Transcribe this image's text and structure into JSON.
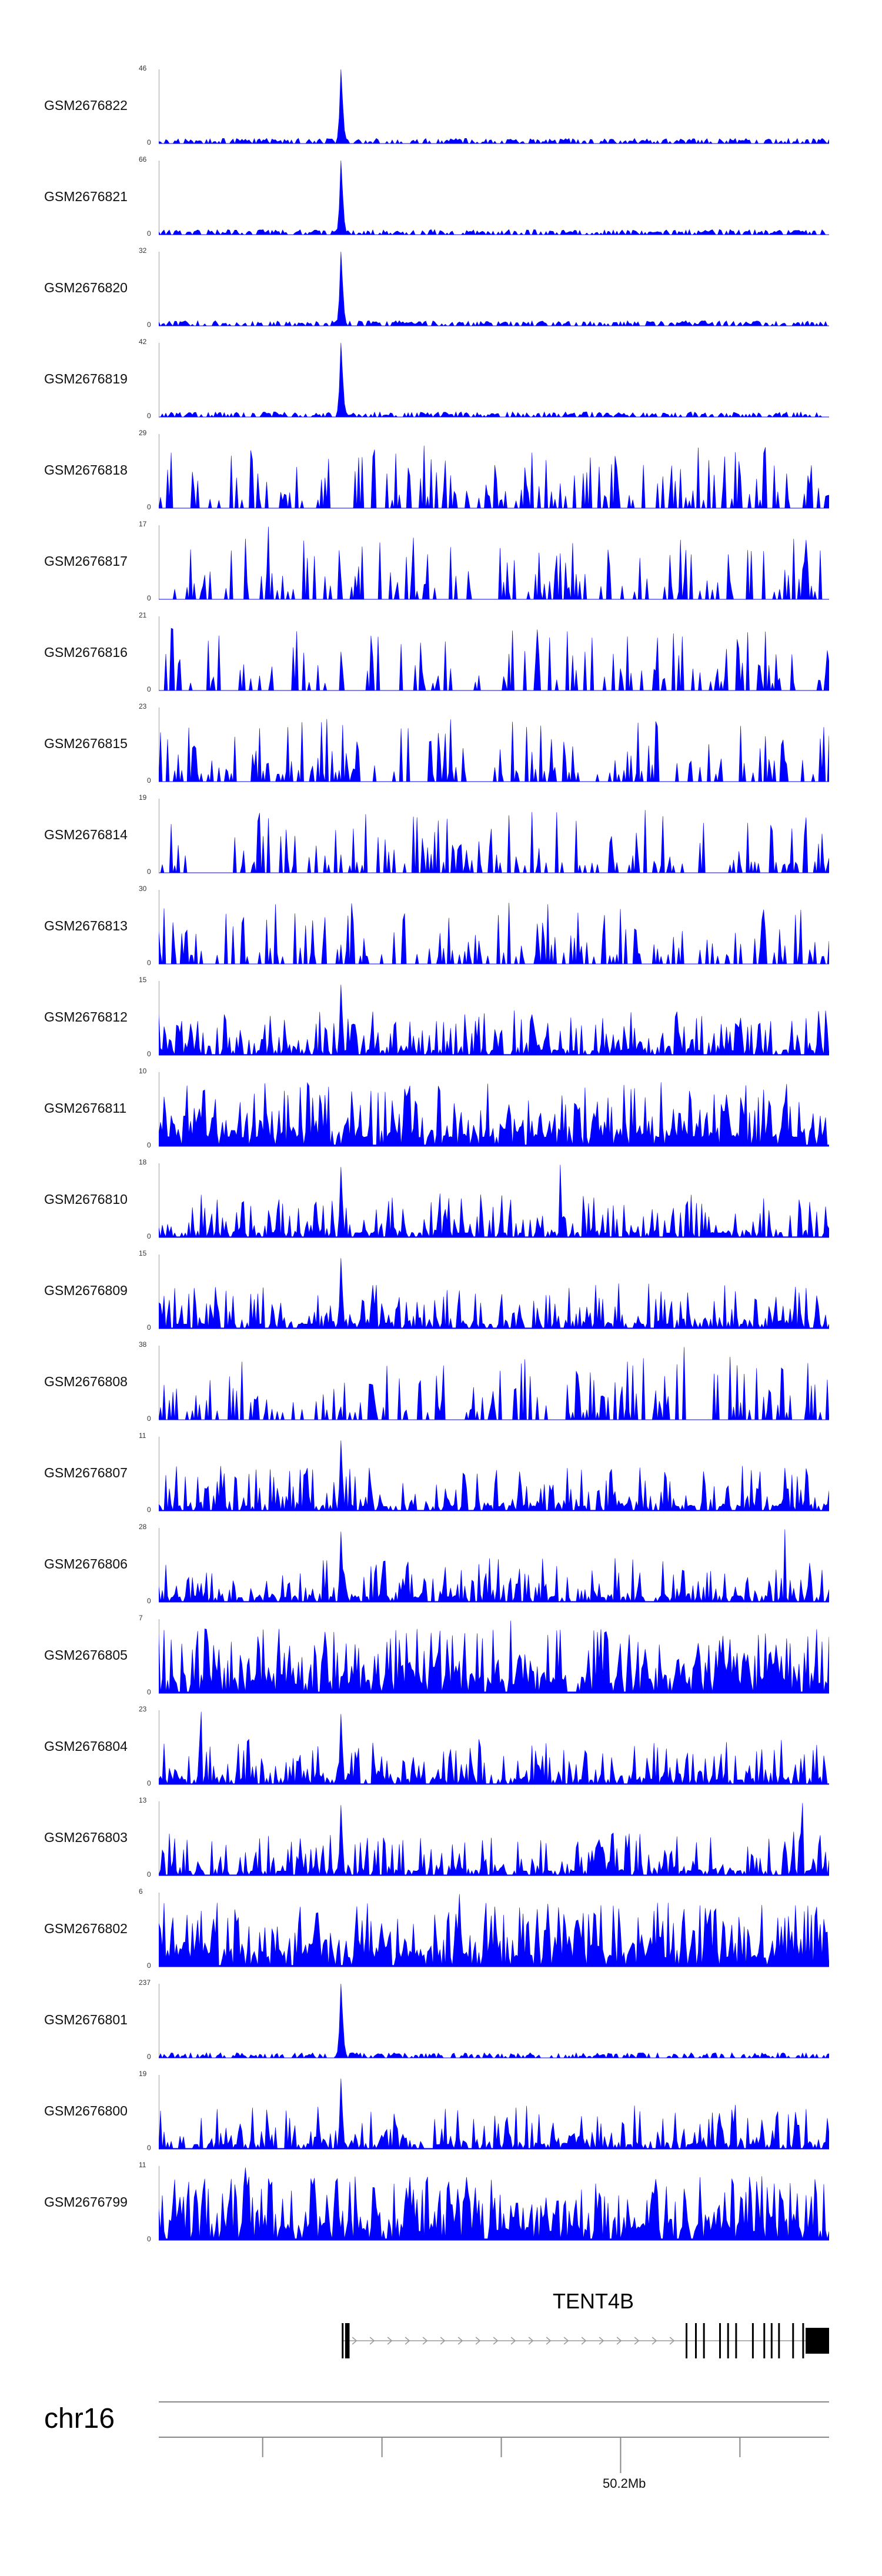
{
  "chart_data": {
    "type": "area",
    "color": "#0000ff",
    "tracks": [
      {
        "name": "GSM2676822",
        "max": "46",
        "min": "0",
        "style": "peak"
      },
      {
        "name": "GSM2676821",
        "max": "66",
        "min": "0",
        "style": "peak"
      },
      {
        "name": "GSM2676820",
        "max": "32",
        "min": "0",
        "style": "peak"
      },
      {
        "name": "GSM2676819",
        "max": "42",
        "min": "0",
        "style": "peak"
      },
      {
        "name": "GSM2676818",
        "max": "29",
        "min": "0",
        "style": "sparse"
      },
      {
        "name": "GSM2676817",
        "max": "17",
        "min": "0",
        "style": "sparse"
      },
      {
        "name": "GSM2676816",
        "max": "21",
        "min": "0",
        "style": "sparse"
      },
      {
        "name": "GSM2676815",
        "max": "23",
        "min": "0",
        "style": "sparse"
      },
      {
        "name": "GSM2676814",
        "max": "19",
        "min": "0",
        "style": "sparse"
      },
      {
        "name": "GSM2676813",
        "max": "30",
        "min": "0",
        "style": "sparse"
      },
      {
        "name": "GSM2676812",
        "max": "15",
        "min": "0",
        "style": "medium"
      },
      {
        "name": "GSM2676811",
        "max": "10",
        "min": "0",
        "style": "dense"
      },
      {
        "name": "GSM2676810",
        "max": "18",
        "min": "0",
        "style": "medium"
      },
      {
        "name": "GSM2676809",
        "max": "15",
        "min": "0",
        "style": "medium"
      },
      {
        "name": "GSM2676808",
        "max": "38",
        "min": "0",
        "style": "sparse"
      },
      {
        "name": "GSM2676807",
        "max": "11",
        "min": "0",
        "style": "medium"
      },
      {
        "name": "GSM2676806",
        "max": "28",
        "min": "0",
        "style": "medium"
      },
      {
        "name": "GSM2676805",
        "max": "7",
        "min": "0",
        "style": "dense"
      },
      {
        "name": "GSM2676804",
        "max": "23",
        "min": "0",
        "style": "medium"
      },
      {
        "name": "GSM2676803",
        "max": "13",
        "min": "0",
        "style": "medium"
      },
      {
        "name": "GSM2676802",
        "max": "6",
        "min": "0",
        "style": "dense"
      },
      {
        "name": "GSM2676801",
        "max": "237",
        "min": "0",
        "style": "peak"
      },
      {
        "name": "GSM2676800",
        "max": "19",
        "min": "0",
        "style": "medium"
      },
      {
        "name": "GSM2676799",
        "max": "11",
        "min": "0",
        "style": "dense"
      }
    ],
    "gene": {
      "name": "TENT4B",
      "exon_positions": [
        0.273,
        0.278,
        0.282,
        0.786,
        0.8,
        0.812,
        0.836,
        0.848,
        0.86,
        0.885,
        0.902,
        0.913,
        0.924,
        0.945,
        0.96
      ]
    },
    "axis": {
      "chrom": "chr16",
      "tick_label": "50.2Mb",
      "tick_positions": [
        0.155,
        0.333,
        0.511,
        0.689,
        0.867
      ]
    }
  }
}
